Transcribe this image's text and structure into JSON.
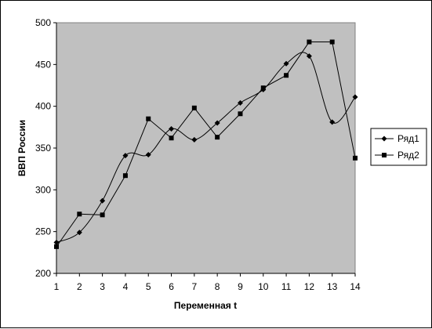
{
  "chart_data": {
    "type": "line",
    "title": "",
    "xlabel": "Переменная t",
    "ylabel": "ВВП России",
    "x": [
      1,
      2,
      3,
      4,
      5,
      6,
      7,
      8,
      9,
      10,
      11,
      12,
      13,
      14
    ],
    "xlim": [
      1,
      14
    ],
    "ylim": [
      200,
      500
    ],
    "yticks": [
      200,
      250,
      300,
      350,
      400,
      450,
      500
    ],
    "grid": false,
    "legend_position": "right",
    "plot_background": "#c0c0c0",
    "line_color": "#000000",
    "series": [
      {
        "name": "Ряд1",
        "marker": "diamond",
        "smooth": true,
        "values": [
          237,
          249,
          287,
          341,
          342,
          373,
          360,
          380,
          404,
          420,
          451,
          460,
          381,
          411
        ]
      },
      {
        "name": "Ряд2",
        "marker": "square",
        "smooth": false,
        "values": [
          232,
          271,
          270,
          317,
          385,
          362,
          398,
          363,
          391,
          422,
          437,
          477,
          477,
          338
        ]
      }
    ]
  }
}
